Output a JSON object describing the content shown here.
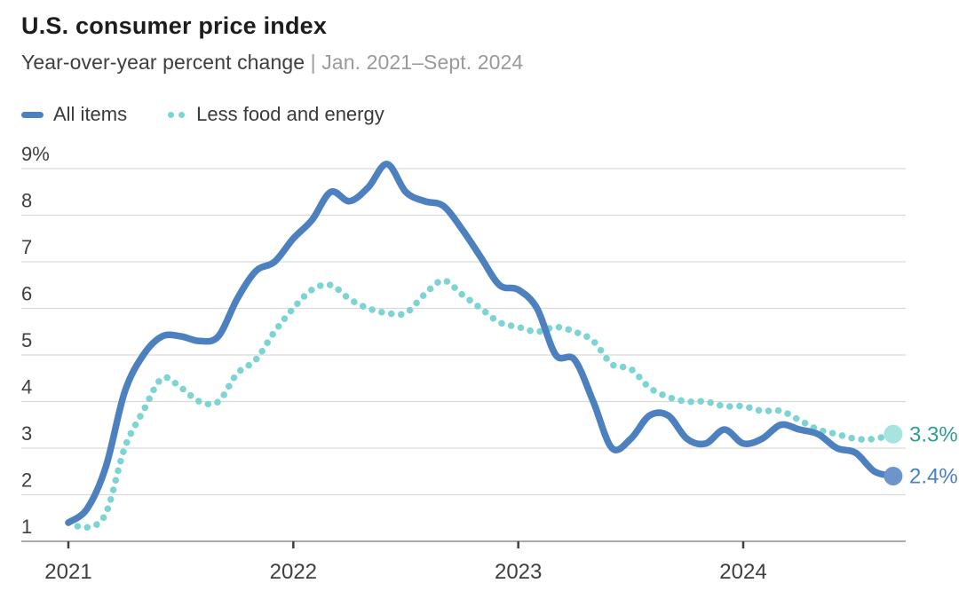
{
  "header": {
    "title": "U.S. consumer price index",
    "subtitle": "Year-over-year percent change",
    "subtitle_range": "| Jan. 2021–Sept. 2024"
  },
  "colors": {
    "title": "#1d1d1d",
    "subtitle": "#3e3e3e",
    "subtitle_muted": "#9a9a9a",
    "gridline": "#d9d9d9",
    "axis_line": "#ababab",
    "tick_mark": "#3f3f3f",
    "axis_label": "#3f3f3f"
  },
  "chart_data": {
    "type": "line",
    "title": "U.S. consumer price index",
    "subtitle": "Year-over-year percent change | Jan. 2021–Sept. 2024",
    "x_unit": "month",
    "x_range": [
      "Jan. 2021",
      "Sept. 2024"
    ],
    "categories": [
      "2021-01",
      "2021-02",
      "2021-03",
      "2021-04",
      "2021-05",
      "2021-06",
      "2021-07",
      "2021-08",
      "2021-09",
      "2021-10",
      "2021-11",
      "2021-12",
      "2022-01",
      "2022-02",
      "2022-03",
      "2022-04",
      "2022-05",
      "2022-06",
      "2022-07",
      "2022-08",
      "2022-09",
      "2022-10",
      "2022-11",
      "2022-12",
      "2023-01",
      "2023-02",
      "2023-03",
      "2023-04",
      "2023-05",
      "2023-06",
      "2023-07",
      "2023-08",
      "2023-09",
      "2023-10",
      "2023-11",
      "2023-12",
      "2024-01",
      "2024-02",
      "2024-03",
      "2024-04",
      "2024-05",
      "2024-06",
      "2024-07",
      "2024-08",
      "2024-09"
    ],
    "x_ticks": [
      {
        "label": "2021",
        "month_index": 0
      },
      {
        "label": "2022",
        "month_index": 12
      },
      {
        "label": "2023",
        "month_index": 24
      },
      {
        "label": "2024",
        "month_index": 36
      }
    ],
    "y_ticks": [
      {
        "value": 1,
        "label": "1"
      },
      {
        "value": 2,
        "label": "2"
      },
      {
        "value": 3,
        "label": "3"
      },
      {
        "value": 4,
        "label": "4"
      },
      {
        "value": 5,
        "label": "5"
      },
      {
        "value": 6,
        "label": "6"
      },
      {
        "value": 7,
        "label": "7"
      },
      {
        "value": 8,
        "label": "8"
      },
      {
        "value": 9,
        "label": "9%"
      }
    ],
    "ylim": [
      1,
      9
    ],
    "grid": true,
    "legend_position": "top-left",
    "series": [
      {
        "name": "All items",
        "style": "solid",
        "color": "#4c80be",
        "end_label": "2.4%",
        "end_label_color": "#4a7fc1",
        "end_dot_color": "#6d94cb",
        "values": [
          1.4,
          1.7,
          2.6,
          4.2,
          5.0,
          5.4,
          5.4,
          5.3,
          5.4,
          6.2,
          6.8,
          7.0,
          7.5,
          7.9,
          8.5,
          8.3,
          8.6,
          9.1,
          8.5,
          8.3,
          8.2,
          7.7,
          7.1,
          6.5,
          6.4,
          6.0,
          5.0,
          4.9,
          4.0,
          3.0,
          3.2,
          3.7,
          3.7,
          3.2,
          3.1,
          3.4,
          3.1,
          3.2,
          3.5,
          3.4,
          3.3,
          3.0,
          2.9,
          2.5,
          2.4
        ]
      },
      {
        "name": "Less food and energy",
        "style": "dotted",
        "color": "#7cd5d3",
        "end_label": "3.3%",
        "end_label_color": "#2f9e94",
        "end_dot_color": "#a7e3e0",
        "values": [
          1.4,
          1.3,
          1.6,
          3.0,
          3.8,
          4.5,
          4.3,
          4.0,
          4.0,
          4.6,
          4.9,
          5.5,
          6.0,
          6.4,
          6.5,
          6.2,
          6.0,
          5.9,
          5.9,
          6.3,
          6.6,
          6.3,
          6.0,
          5.7,
          5.6,
          5.5,
          5.6,
          5.5,
          5.3,
          4.8,
          4.7,
          4.3,
          4.1,
          4.0,
          4.0,
          3.9,
          3.9,
          3.8,
          3.8,
          3.6,
          3.4,
          3.3,
          3.2,
          3.2,
          3.3
        ]
      }
    ]
  }
}
